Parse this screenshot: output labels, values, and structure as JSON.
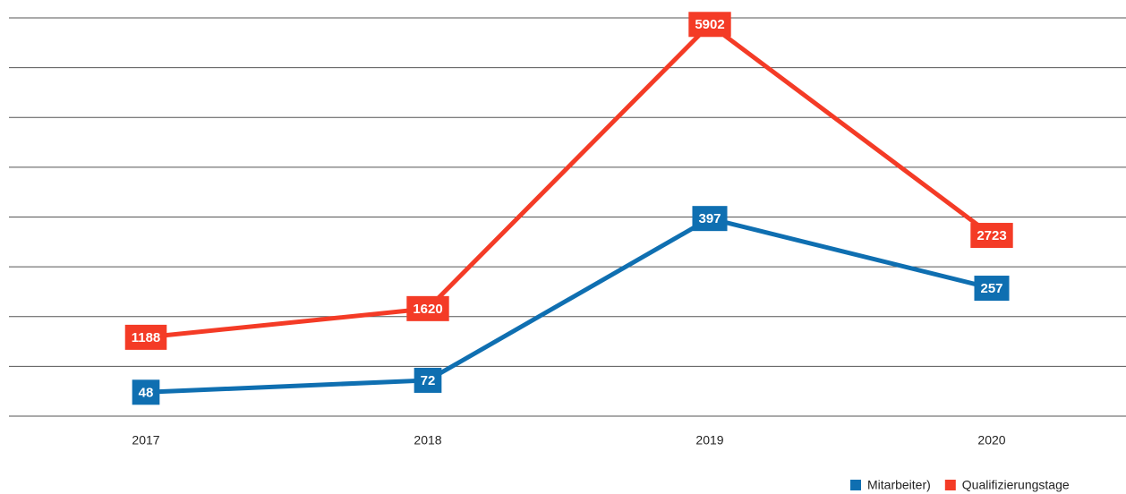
{
  "chart_data": {
    "type": "line",
    "categories": [
      "2017",
      "2018",
      "2019",
      "2020"
    ],
    "series": [
      {
        "name": "Mitarbeiter)",
        "color": "#0f6fb1",
        "values": [
          48,
          72,
          397,
          257
        ],
        "axis": "y2"
      },
      {
        "name": "Qualifizierungstage",
        "color": "#f43b26",
        "values": [
          1188,
          1620,
          5902,
          2723
        ]
      }
    ],
    "ylim": [
      0,
      6000
    ],
    "yticks": [
      0,
      750,
      1500,
      2250,
      3000,
      3750,
      4500,
      5250,
      6000
    ],
    "y2lim": [
      0,
      800
    ],
    "grid": true,
    "legend": "bottom-right"
  }
}
